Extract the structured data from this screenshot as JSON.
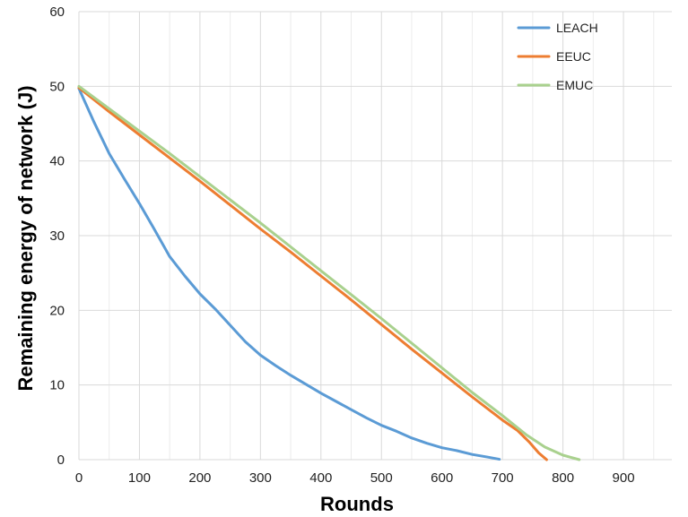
{
  "chart_data": {
    "type": "line",
    "title": "",
    "xlabel": "Rounds",
    "ylabel": "Remaining energy of network (J)",
    "xlim": [
      0,
      980
    ],
    "ylim": [
      0,
      60
    ],
    "x_ticks": [
      0,
      100,
      200,
      300,
      400,
      500,
      600,
      700,
      800,
      900
    ],
    "y_ticks": [
      0,
      10,
      20,
      30,
      40,
      50,
      60
    ],
    "grid": true,
    "legend_position": "top-right",
    "series": [
      {
        "name": "LEACH",
        "color": "#5b9bd5",
        "points": [
          [
            0,
            49.7
          ],
          [
            25,
            45.2
          ],
          [
            50,
            41.0
          ],
          [
            75,
            37.6
          ],
          [
            100,
            34.3
          ],
          [
            125,
            30.8
          ],
          [
            150,
            27.2
          ],
          [
            175,
            24.6
          ],
          [
            200,
            22.2
          ],
          [
            225,
            20.2
          ],
          [
            250,
            18.0
          ],
          [
            275,
            15.8
          ],
          [
            300,
            14.0
          ],
          [
            325,
            12.6
          ],
          [
            350,
            11.3
          ],
          [
            375,
            10.1
          ],
          [
            400,
            8.9
          ],
          [
            425,
            7.8
          ],
          [
            450,
            6.7
          ],
          [
            475,
            5.6
          ],
          [
            500,
            4.6
          ],
          [
            525,
            3.8
          ],
          [
            550,
            2.9
          ],
          [
            575,
            2.2
          ],
          [
            600,
            1.6
          ],
          [
            625,
            1.2
          ],
          [
            650,
            0.7
          ],
          [
            675,
            0.35
          ],
          [
            695,
            0.05
          ]
        ]
      },
      {
        "name": "EEUC",
        "color": "#ed7d31",
        "points": [
          [
            0,
            49.8
          ],
          [
            50,
            46.6
          ],
          [
            100,
            43.5
          ],
          [
            150,
            40.4
          ],
          [
            200,
            37.3
          ],
          [
            250,
            34.1
          ],
          [
            300,
            30.9
          ],
          [
            350,
            27.8
          ],
          [
            400,
            24.6
          ],
          [
            450,
            21.4
          ],
          [
            500,
            18.1
          ],
          [
            550,
            14.8
          ],
          [
            600,
            11.6
          ],
          [
            650,
            8.4
          ],
          [
            700,
            5.3
          ],
          [
            725,
            3.9
          ],
          [
            745,
            2.3
          ],
          [
            760,
            0.9
          ],
          [
            773,
            0.0
          ]
        ]
      },
      {
        "name": "EMUC",
        "color": "#a9d18e",
        "points": [
          [
            0,
            50.0
          ],
          [
            50,
            47.0
          ],
          [
            100,
            44.0
          ],
          [
            150,
            41.0
          ],
          [
            200,
            37.9
          ],
          [
            250,
            34.8
          ],
          [
            300,
            31.7
          ],
          [
            350,
            28.5
          ],
          [
            400,
            25.3
          ],
          [
            450,
            22.1
          ],
          [
            500,
            18.9
          ],
          [
            550,
            15.6
          ],
          [
            600,
            12.3
          ],
          [
            650,
            9.0
          ],
          [
            700,
            5.9
          ],
          [
            740,
            3.3
          ],
          [
            770,
            1.7
          ],
          [
            800,
            0.6
          ],
          [
            827,
            0.0
          ]
        ]
      }
    ]
  }
}
